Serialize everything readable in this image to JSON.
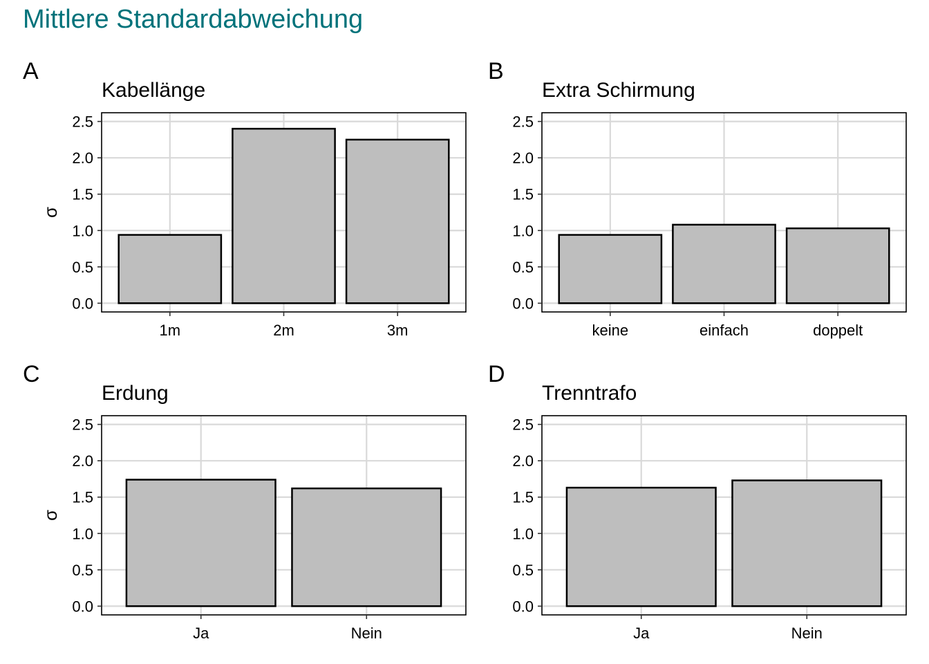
{
  "title": "Mittlere Standardabweichung",
  "colors": {
    "title": "#00727a",
    "bar_fill": "#bebebe",
    "bar_stroke": "#000000",
    "grid": "#d9d9d9"
  },
  "chart_data": [
    {
      "type": "bar",
      "tag": "A",
      "title": "Kabellänge",
      "ylabel": "σ",
      "categories": [
        "1m",
        "2m",
        "3m"
      ],
      "values": [
        0.94,
        2.4,
        2.25
      ],
      "ylim": [
        -0.12,
        2.62
      ],
      "yticks": [
        "0.0",
        "0.5",
        "1.0",
        "1.5",
        "2.0",
        "2.5"
      ],
      "grid": true
    },
    {
      "type": "bar",
      "tag": "B",
      "title": "Extra Schirmung",
      "ylabel": "",
      "categories": [
        "keine",
        "einfach",
        "doppelt"
      ],
      "values": [
        0.94,
        1.08,
        1.03
      ],
      "ylim": [
        -0.12,
        2.62
      ],
      "yticks": [
        "0.0",
        "0.5",
        "1.0",
        "1.5",
        "2.0",
        "2.5"
      ],
      "grid": true
    },
    {
      "type": "bar",
      "tag": "C",
      "title": "Erdung",
      "ylabel": "σ",
      "categories": [
        "Ja",
        "Nein"
      ],
      "values": [
        1.74,
        1.62
      ],
      "ylim": [
        -0.12,
        2.62
      ],
      "yticks": [
        "0.0",
        "0.5",
        "1.0",
        "1.5",
        "2.0",
        "2.5"
      ],
      "grid": true
    },
    {
      "type": "bar",
      "tag": "D",
      "title": "Trenntrafo",
      "ylabel": "",
      "categories": [
        "Ja",
        "Nein"
      ],
      "values": [
        1.63,
        1.73
      ],
      "ylim": [
        -0.12,
        2.62
      ],
      "yticks": [
        "0.0",
        "0.5",
        "1.0",
        "1.5",
        "2.0",
        "2.5"
      ],
      "grid": true
    }
  ]
}
